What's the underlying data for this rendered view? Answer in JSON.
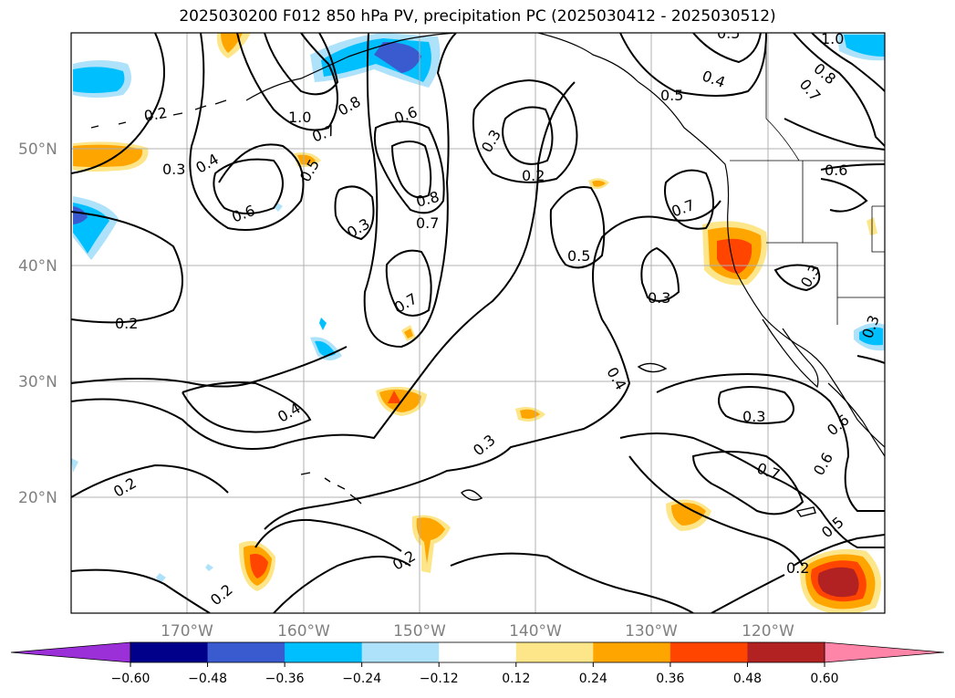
{
  "title": "2025030200 F012 850 hPa PV, precipitation PC (2025030412 - 2025030512)",
  "map": {
    "lat_ticks": [
      "50°N",
      "40°N",
      "30°N",
      "20°N"
    ],
    "lon_ticks": [
      "170°W",
      "160°W",
      "150°W",
      "140°W",
      "130°W",
      "120°W"
    ],
    "contour_labels": [
      {
        "text": "0.2"
      },
      {
        "text": "0.3"
      },
      {
        "text": "0.4"
      },
      {
        "text": "0.6"
      },
      {
        "text": "1.0"
      },
      {
        "text": "0.8"
      },
      {
        "text": "0.7"
      },
      {
        "text": "0.6"
      },
      {
        "text": "0.5"
      },
      {
        "text": "0.3"
      },
      {
        "text": "0.8"
      },
      {
        "text": "0.7"
      },
      {
        "text": "0.7"
      },
      {
        "text": "0.3"
      },
      {
        "text": "0.2"
      },
      {
        "text": "0.5"
      },
      {
        "text": "0.7"
      },
      {
        "text": "0.3"
      },
      {
        "text": "0.5"
      },
      {
        "text": "0.4"
      },
      {
        "text": "1.0"
      },
      {
        "text": "0.8"
      },
      {
        "text": "0.7"
      },
      {
        "text": "0.6"
      },
      {
        "text": "0.3"
      },
      {
        "text": "0.3"
      },
      {
        "text": "0.2"
      },
      {
        "text": "0.4"
      },
      {
        "text": "0.3"
      },
      {
        "text": "0.4"
      },
      {
        "text": "0.3"
      },
      {
        "text": "0.6"
      },
      {
        "text": "0.6"
      },
      {
        "text": "0.7"
      },
      {
        "text": "0.5"
      },
      {
        "text": "0.2"
      },
      {
        "text": "0.2"
      },
      {
        "text": "0.2"
      },
      {
        "text": "0.2"
      },
      {
        "text": "0.5"
      }
    ]
  },
  "colorbar": {
    "ticks": [
      "−0.60",
      "−0.48",
      "−0.36",
      "−0.24",
      "−0.12",
      "0.12",
      "0.24",
      "0.36",
      "0.48",
      "0.60"
    ],
    "colors": [
      "#9b30d9",
      "#00008b",
      "#3a5bd0",
      "#00bfff",
      "#aee2fa",
      "#ffffff",
      "#fde68a",
      "#ffa500",
      "#ff4500",
      "#b22222",
      "#ff85a8"
    ]
  }
}
